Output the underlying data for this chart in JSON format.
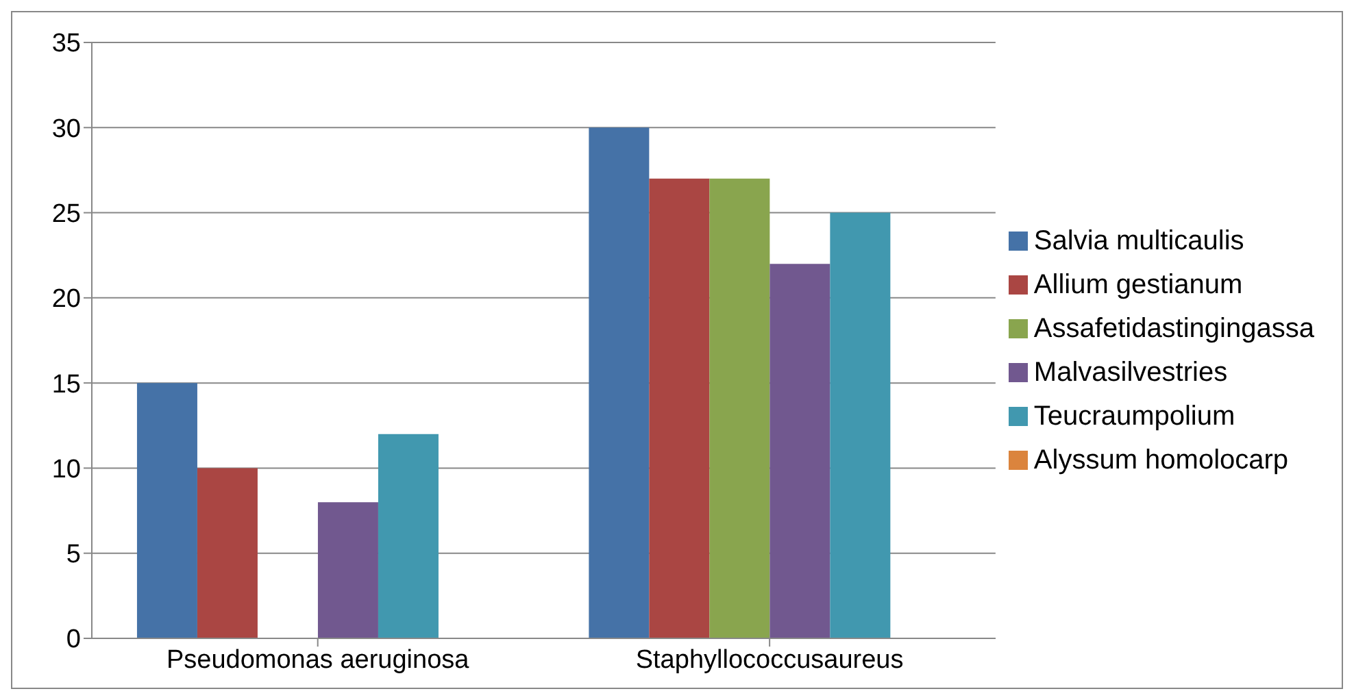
{
  "chart_data": {
    "type": "bar",
    "categories": [
      "Pseudomonas aeruginosa",
      "Staphyllococcusaureus"
    ],
    "series": [
      {
        "name": "Salvia multicaulis",
        "color": "#4572a7",
        "values": [
          15,
          30
        ]
      },
      {
        "name": "Allium gestianum",
        "color": "#aa4643",
        "values": [
          10,
          27
        ]
      },
      {
        "name": "Assafetidastingingassa",
        "color": "#89a54e",
        "values": [
          0,
          27
        ]
      },
      {
        "name": "Malvasilvestries",
        "color": "#71588f",
        "values": [
          8,
          22
        ]
      },
      {
        "name": "Teucraumpolium",
        "color": "#4198af",
        "values": [
          12,
          25
        ]
      },
      {
        "name": "Alyssum homolocarp",
        "color": "#db843d",
        "values": [
          0,
          0
        ]
      }
    ],
    "ylim": [
      0,
      35
    ],
    "yticks": [
      0,
      5,
      10,
      15,
      20,
      25,
      30,
      35
    ],
    "grid": "y",
    "legend": "right"
  }
}
